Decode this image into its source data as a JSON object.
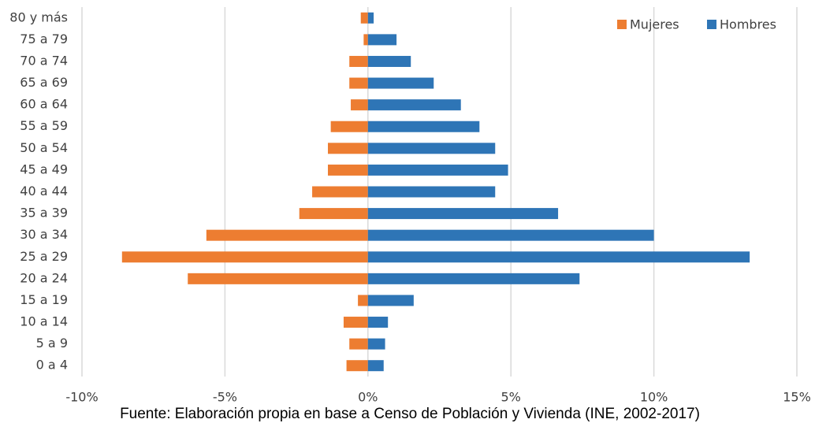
{
  "chart_data": {
    "type": "bar",
    "orientation": "horizontal",
    "stacked": false,
    "categories": [
      "80 y más",
      "75 a 79",
      "70 a 74",
      "65 a 69",
      "60 a 64",
      "55 a 59",
      "50 a 54",
      "45 a 49",
      "40 a 44",
      "35 a 39",
      "30 a 34",
      "25 a 29",
      "20 a 24",
      "15 a 19",
      "10 a 14",
      "5 a 9",
      "0 a 4"
    ],
    "series": [
      {
        "name": "Mujeres",
        "color": "#ed7d31",
        "values": [
          -0.25,
          -0.15,
          -0.65,
          -0.65,
          -0.6,
          -1.3,
          -1.4,
          -1.4,
          -1.95,
          -2.4,
          -5.65,
          -8.6,
          -6.3,
          -0.35,
          -0.85,
          -0.65,
          -0.75
        ]
      },
      {
        "name": "Hombres",
        "color": "#2e75b6",
        "values": [
          0.2,
          1.0,
          1.5,
          2.3,
          3.25,
          3.9,
          4.45,
          4.9,
          4.45,
          6.65,
          10.0,
          13.35,
          7.4,
          1.6,
          0.7,
          0.6,
          0.55
        ]
      }
    ],
    "xlim": [
      -10,
      15
    ],
    "xticks": [
      {
        "value": -10,
        "label": "-10%"
      },
      {
        "value": -5,
        "label": "-5%"
      },
      {
        "value": 0,
        "label": "0%"
      },
      {
        "value": 5,
        "label": "5%"
      },
      {
        "value": 10,
        "label": "10%"
      },
      {
        "value": 15,
        "label": "15%"
      }
    ],
    "grid": true,
    "legend": "top-right",
    "caption": "Fuente: Elaboración propia en base a Censo de Población y Vivienda (INE, 2002-2017)"
  }
}
